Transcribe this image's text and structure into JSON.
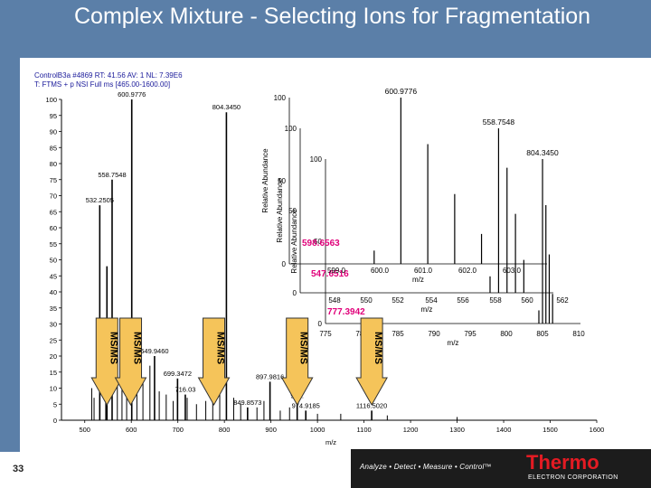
{
  "slide": {
    "title": "Complex Mixture - Selecting Ions for Fragmentation",
    "page_number": "33"
  },
  "scan_header": {
    "line1": "ControlB3a #4869   RT: 41.56   AV: 1   NL: 7.39E6",
    "line2": "T: FTMS + p NSI Full ms [465.00-1600.00]"
  },
  "footer": {
    "slogan": "Analyze • Detect • Measure • Control™",
    "brand": "Thermo",
    "brand_sub": "ELECTRON CORPORATION"
  },
  "colors": {
    "title_band": "#5b7fa8",
    "arrow_fill": "#f5c45a",
    "highlight_label": "#e0007a",
    "brand_red": "#e31b23"
  },
  "arrows": [
    {
      "label": "MS/MS"
    },
    {
      "label": "MS/MS"
    },
    {
      "label": "MS/MS"
    },
    {
      "label": "MS/MS"
    },
    {
      "label": "MS/MS"
    }
  ],
  "chart_data": [
    {
      "type": "bar",
      "xlabel": "m/z",
      "ylabel": "",
      "xlim": [
        450,
        1600
      ],
      "ylim": [
        0,
        100
      ],
      "x_ticks": [
        500,
        600,
        700,
        800,
        900,
        1000,
        1100,
        1200,
        1300,
        1400,
        1500,
        1600
      ],
      "y_ticks": [
        0,
        5,
        10,
        15,
        20,
        25,
        30,
        35,
        40,
        45,
        50,
        55,
        60,
        65,
        70,
        75,
        80,
        85,
        90,
        95,
        100
      ],
      "peaks": [
        {
          "x": 532.2505,
          "y": 67,
          "label": "532.2505"
        },
        {
          "x": 547.6516,
          "y": 48,
          "label": ""
        },
        {
          "x": 558.7548,
          "y": 75,
          "label": "558.7548"
        },
        {
          "x": 600.9776,
          "y": 100,
          "label": "600.9776"
        },
        {
          "x": 649.946,
          "y": 20,
          "label": "649.9460"
        },
        {
          "x": 699.3472,
          "y": 13,
          "label": "699.3472"
        },
        {
          "x": 716.03,
          "y": 8,
          "label": "716.03"
        },
        {
          "x": 804.345,
          "y": 96,
          "label": "804.3450"
        },
        {
          "x": 849.8573,
          "y": 4,
          "label": "849.8573"
        },
        {
          "x": 897.9816,
          "y": 12,
          "label": "897.9816"
        },
        {
          "x": 956.4,
          "y": 6,
          "label": "956."
        },
        {
          "x": 974.9185,
          "y": 3,
          "label": "974.9185"
        },
        {
          "x": 1116.502,
          "y": 3,
          "label": "1116.5020"
        }
      ],
      "minor_peaks": [
        {
          "x": 515,
          "y": 10
        },
        {
          "x": 520,
          "y": 7
        },
        {
          "x": 545,
          "y": 18
        },
        {
          "x": 570,
          "y": 30
        },
        {
          "x": 580,
          "y": 15
        },
        {
          "x": 590,
          "y": 22
        },
        {
          "x": 612,
          "y": 26
        },
        {
          "x": 625,
          "y": 12
        },
        {
          "x": 640,
          "y": 17
        },
        {
          "x": 660,
          "y": 9
        },
        {
          "x": 675,
          "y": 8
        },
        {
          "x": 690,
          "y": 6
        },
        {
          "x": 720,
          "y": 7
        },
        {
          "x": 740,
          "y": 5
        },
        {
          "x": 760,
          "y": 6
        },
        {
          "x": 775,
          "y": 22
        },
        {
          "x": 790,
          "y": 9
        },
        {
          "x": 820,
          "y": 7
        },
        {
          "x": 835,
          "y": 5
        },
        {
          "x": 870,
          "y": 4
        },
        {
          "x": 885,
          "y": 6
        },
        {
          "x": 920,
          "y": 3
        },
        {
          "x": 940,
          "y": 4
        },
        {
          "x": 1000,
          "y": 2
        },
        {
          "x": 1050,
          "y": 2
        },
        {
          "x": 1150,
          "y": 1.5
        },
        {
          "x": 1300,
          "y": 1
        }
      ]
    },
    {
      "type": "bar",
      "xlabel": "m/z",
      "ylabel": "Relative Abundance",
      "xlim": [
        598.9,
        603.7
      ],
      "ylim": [
        0,
        100
      ],
      "x_ticks": [
        "599.0",
        "600.0",
        "601.0",
        "602.0",
        "603.0"
      ],
      "y_ticks": [
        0,
        50,
        100
      ],
      "peaks": [
        {
          "x": 600.9776,
          "y": 100,
          "label": "600.9776"
        },
        {
          "x": 601.479,
          "y": 72,
          "label": ""
        },
        {
          "x": 601.98,
          "y": 42,
          "label": ""
        },
        {
          "x": 602.48,
          "y": 18,
          "label": ""
        },
        {
          "x": 600.48,
          "y": 8,
          "label": ""
        }
      ],
      "annotation": "598.6563"
    },
    {
      "type": "bar",
      "xlabel": "m/z",
      "ylabel": "Relative Abundance",
      "xlim": [
        547,
        562
      ],
      "ylim": [
        0,
        100
      ],
      "x_ticks": [
        "548",
        "550",
        "552",
        "554",
        "556",
        "558",
        "560",
        "562"
      ],
      "y_ticks": [
        0,
        50,
        100
      ],
      "peaks": [
        {
          "x": 558.7548,
          "y": 100,
          "label": "558.7548"
        },
        {
          "x": 559.255,
          "y": 76,
          "label": ""
        },
        {
          "x": 559.755,
          "y": 48,
          "label": ""
        },
        {
          "x": 560.25,
          "y": 20,
          "label": ""
        },
        {
          "x": 558.25,
          "y": 10,
          "label": ""
        }
      ],
      "annotation": "547.6516"
    },
    {
      "type": "bar",
      "xlabel": "m/z",
      "ylabel": "Relative Abundance",
      "xlim": [
        772,
        810
      ],
      "ylim": [
        0,
        100
      ],
      "x_ticks": [
        "775",
        "780",
        "785",
        "790",
        "795",
        "800",
        "805",
        "810"
      ],
      "y_ticks": [
        0,
        50,
        100
      ],
      "peaks": [
        {
          "x": 804.345,
          "y": 100,
          "label": "804.3450"
        },
        {
          "x": 804.845,
          "y": 72,
          "label": ""
        },
        {
          "x": 805.345,
          "y": 42,
          "label": ""
        },
        {
          "x": 805.845,
          "y": 18,
          "label": ""
        },
        {
          "x": 803.8,
          "y": 8,
          "label": ""
        }
      ],
      "annotation": "777.3942"
    }
  ]
}
